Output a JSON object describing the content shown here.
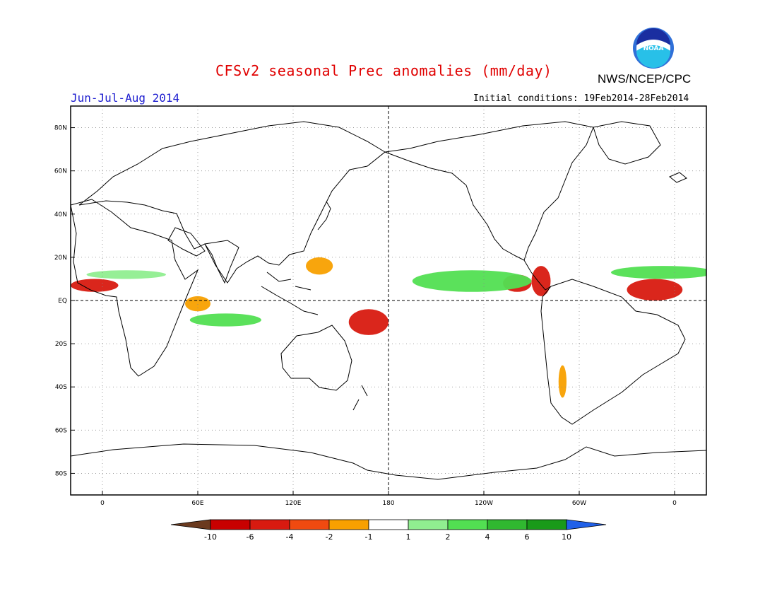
{
  "header": {
    "title": "CFSv2 seasonal Prec anomalies (mm/day)",
    "organization": "NWS/NCEP/CPC",
    "season": "Jun-Jul-Aug 2014",
    "initial_conditions": "Initial conditions: 19Feb2014-28Feb2014",
    "logo_text": "NOAA"
  },
  "map": {
    "projection": "cylindrical-equidistant",
    "lon_range": [
      -20,
      380
    ],
    "lat_range": [
      -90,
      90
    ],
    "lat_ticks": [
      {
        "lat": 80,
        "label": "80N"
      },
      {
        "lat": 60,
        "label": "60N"
      },
      {
        "lat": 40,
        "label": "40N"
      },
      {
        "lat": 20,
        "label": "20N"
      },
      {
        "lat": 0,
        "label": "EQ"
      },
      {
        "lat": -20,
        "label": "20S"
      },
      {
        "lat": -40,
        "label": "40S"
      },
      {
        "lat": -60,
        "label": "60S"
      },
      {
        "lat": -80,
        "label": "80S"
      }
    ],
    "lon_ticks": [
      {
        "lon": 0,
        "label": "0"
      },
      {
        "lon": 60,
        "label": "60E"
      },
      {
        "lon": 120,
        "label": "120E"
      },
      {
        "lon": 180,
        "label": "180"
      },
      {
        "lon": 240,
        "label": "120W"
      },
      {
        "lon": 300,
        "label": "60W"
      },
      {
        "lon": 360,
        "label": "0"
      }
    ],
    "grid": "dotted",
    "anomaly_regions": [
      {
        "name": "tropical-atlantic-africa-dry",
        "level": -4,
        "lon": [
          -20,
          10
        ],
        "lat": [
          4,
          10
        ]
      },
      {
        "name": "tropical-atlantic-dry",
        "level": -4,
        "lon": [
          330,
          365
        ],
        "lat": [
          0,
          10
        ]
      },
      {
        "name": "east-pacific-dry",
        "level": -4,
        "lon": [
          252,
          270
        ],
        "lat": [
          4,
          12
        ]
      },
      {
        "name": "south-pacific-dry",
        "level": -4,
        "lon": [
          155,
          180
        ],
        "lat": [
          -16,
          -4
        ]
      },
      {
        "name": "central-america-dry",
        "level": -4,
        "lon": [
          270,
          282
        ],
        "lat": [
          2,
          16
        ]
      },
      {
        "name": "west-indian-ocean-dry",
        "level": -2,
        "lon": [
          52,
          68
        ],
        "lat": [
          -5,
          2
        ]
      },
      {
        "name": "philippine-sea-dry",
        "level": -2,
        "lon": [
          128,
          145
        ],
        "lat": [
          12,
          20
        ]
      },
      {
        "name": "west-coast-chile-dry",
        "level": -2,
        "lon": [
          287,
          292
        ],
        "lat": [
          -45,
          -30
        ]
      },
      {
        "name": "central-pacific-wet",
        "level": 2,
        "lon": [
          195,
          270
        ],
        "lat": [
          4,
          14
        ]
      },
      {
        "name": "atlantic-itcz-wet",
        "level": 2,
        "lon": [
          320,
          385
        ],
        "lat": [
          10,
          16
        ]
      },
      {
        "name": "africa-sahel-wet",
        "level": 1,
        "lon": [
          -10,
          40
        ],
        "lat": [
          10,
          14
        ]
      },
      {
        "name": "indian-ocean-wet",
        "level": 2,
        "lon": [
          55,
          100
        ],
        "lat": [
          -12,
          -6
        ]
      }
    ]
  },
  "colorbar": {
    "labels": [
      "-10",
      "-6",
      "-4",
      "-2",
      "-1",
      "1",
      "2",
      "4",
      "6",
      "10"
    ],
    "colors": [
      "#6b3a1f",
      "#c80000",
      "#d81a10",
      "#f04a10",
      "#f8a000",
      "#ffffff",
      "#90ee90",
      "#52df52",
      "#30b830",
      "#199a19",
      "#2060e8"
    ]
  }
}
